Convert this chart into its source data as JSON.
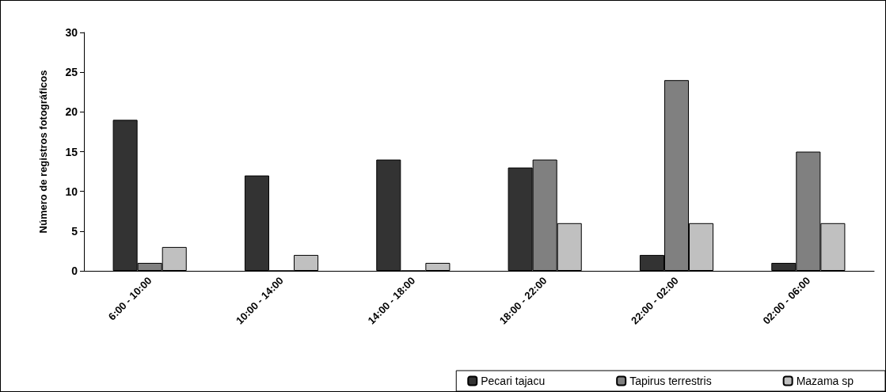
{
  "chart_data": {
    "type": "bar",
    "ylabel": "Número de registros fotográficos",
    "categories": [
      "6:00 - 10:00",
      "10:00 - 14:00",
      "14:00 - 18:00",
      "18:00 - 22:00",
      "22:00 - 02:00",
      "02:00 - 06:00"
    ],
    "series": [
      {
        "name": "Pecari tajacu",
        "color": "#333333",
        "values": [
          19,
          12,
          14,
          13,
          2,
          1
        ]
      },
      {
        "name": "Tapirus terrestris",
        "color": "#808080",
        "values": [
          1,
          0,
          0,
          14,
          24,
          15
        ]
      },
      {
        "name": "Mazama sp",
        "color": "#c0c0c0",
        "values": [
          3,
          2,
          1,
          6,
          6,
          6
        ]
      }
    ],
    "ylim": [
      0,
      30
    ],
    "yticks": [
      0,
      5,
      10,
      15,
      20,
      25,
      30
    ],
    "grid": false,
    "legend": "bottom right"
  }
}
